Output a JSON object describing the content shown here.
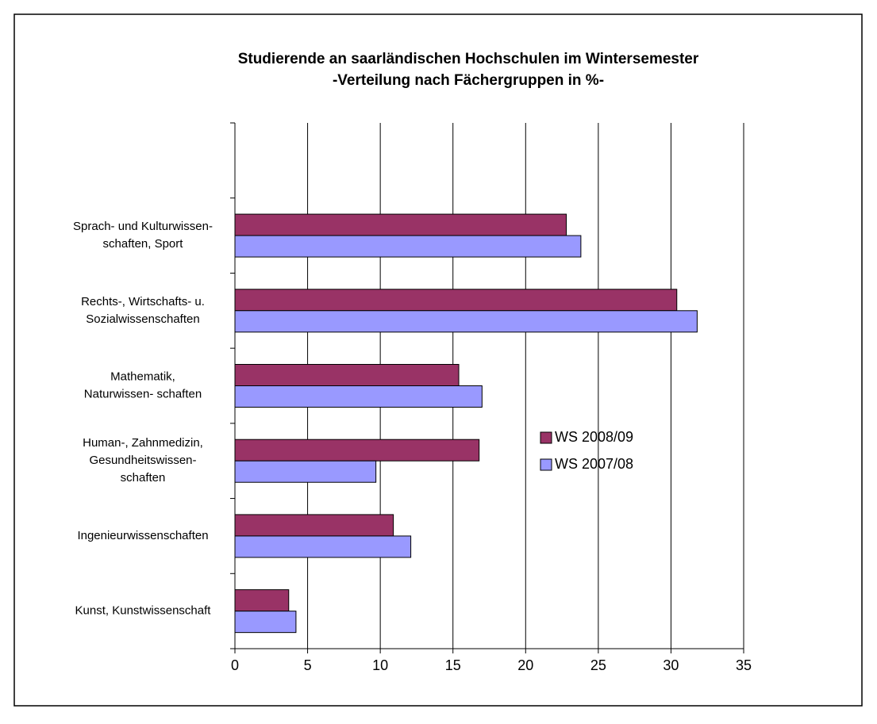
{
  "chart_data": {
    "type": "hbar",
    "title": "Studierende an saarländischen Hochschulen im Wintersemester",
    "subtitle": "-Verteilung nach Fächergruppen in %-",
    "categories": [
      null,
      "Sprach- und Kulturwissen-\nschaften, Sport",
      "Rechts-, Wirtschafts- u.\nSozialwissenschaften",
      "Mathematik,\nNaturwissen- schaften",
      "Human-, Zahnmedizin,\nGesundheitswissen-\nschaften",
      "Ingenieurwissenschaften",
      "Kunst, Kunstwissenschaft"
    ],
    "series": [
      {
        "name": "WS 2008/09",
        "color": "#993366",
        "values": [
          null,
          22.8,
          30.4,
          15.4,
          16.8,
          10.9,
          3.7
        ]
      },
      {
        "name": "WS 2007/08",
        "color": "#9999ff",
        "values": [
          null,
          23.8,
          31.8,
          17.0,
          9.7,
          12.1,
          4.2
        ]
      }
    ],
    "xlim": [
      0,
      35
    ],
    "xticks": [
      0,
      5,
      10,
      15,
      20,
      25,
      30,
      35
    ],
    "grid": true,
    "legend": "right"
  }
}
